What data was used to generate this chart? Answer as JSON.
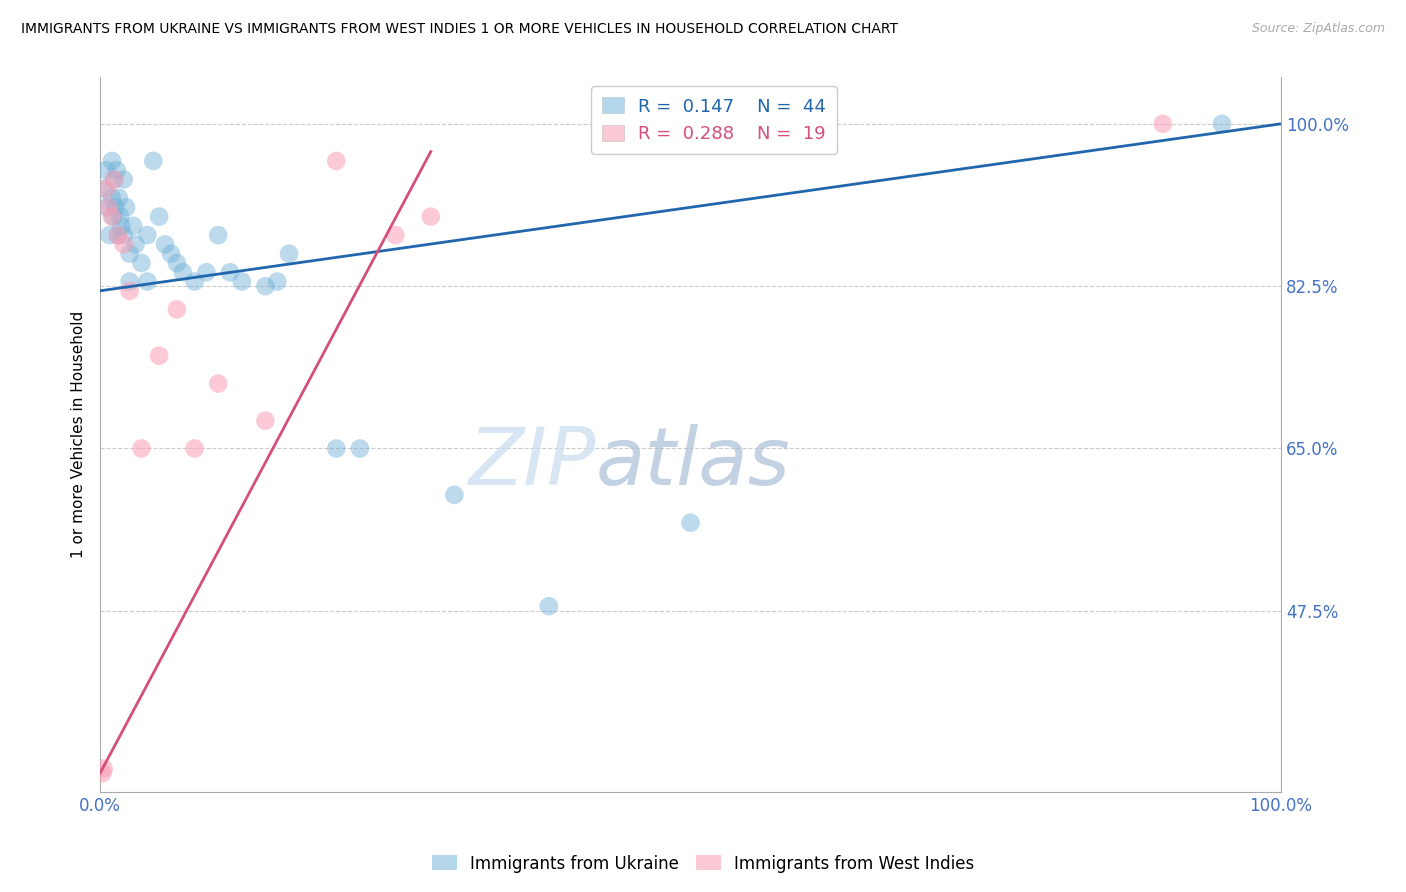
{
  "title": "IMMIGRANTS FROM UKRAINE VS IMMIGRANTS FROM WEST INDIES 1 OR MORE VEHICLES IN HOUSEHOLD CORRELATION CHART",
  "source": "Source: ZipAtlas.com",
  "ylabel": "1 or more Vehicles in Household",
  "ukraine_R": 0.147,
  "ukraine_N": 44,
  "westindies_R": 0.288,
  "westindies_N": 19,
  "ukraine_color": "#6baed6",
  "westindies_color": "#fa9fb5",
  "ukraine_line_color": "#2166ac",
  "westindies_line_color": "#d44f7a",
  "background_color": "#ffffff",
  "watermark_zip": "ZIP",
  "watermark_atlas": "atlas",
  "xmin": 0,
  "xmax": 100,
  "ymin": 28,
  "ymax": 105,
  "yticks": [
    47.5,
    65.0,
    82.5,
    100.0
  ],
  "ukraine_x": [
    0.4,
    0.5,
    0.6,
    0.8,
    1.0,
    1.0,
    1.1,
    1.2,
    1.3,
    1.4,
    1.5,
    1.6,
    1.7,
    1.8,
    2.0,
    2.0,
    2.2,
    2.5,
    2.5,
    2.8,
    3.0,
    3.5,
    4.0,
    4.0,
    4.5,
    5.0,
    5.5,
    6.0,
    6.5,
    7.0,
    8.0,
    9.0,
    10.0,
    11.0,
    12.0,
    14.0,
    15.0,
    16.0,
    20.0,
    22.0,
    30.0,
    38.0,
    50.0,
    95.0
  ],
  "ukraine_y": [
    93.0,
    95.0,
    91.0,
    88.0,
    92.0,
    96.0,
    90.0,
    94.0,
    91.0,
    95.0,
    88.0,
    92.0,
    90.0,
    89.0,
    94.0,
    88.0,
    91.0,
    86.0,
    83.0,
    89.0,
    87.0,
    85.0,
    88.0,
    83.0,
    96.0,
    90.0,
    87.0,
    86.0,
    85.0,
    84.0,
    83.0,
    84.0,
    88.0,
    84.0,
    83.0,
    82.5,
    83.0,
    86.0,
    65.0,
    65.0,
    60.0,
    48.0,
    57.0,
    100.0
  ],
  "westindies_x": [
    0.2,
    0.3,
    0.5,
    0.7,
    1.0,
    1.2,
    1.5,
    2.0,
    2.5,
    3.5,
    5.0,
    6.5,
    8.0,
    10.0,
    14.0,
    20.0,
    25.0,
    28.0,
    90.0
  ],
  "westindies_y": [
    30.0,
    30.5,
    93.0,
    91.0,
    90.0,
    94.0,
    88.0,
    87.0,
    82.0,
    65.0,
    75.0,
    80.0,
    65.0,
    72.0,
    68.0,
    96.0,
    88.0,
    90.0,
    100.0
  ],
  "blue_line_x0": 0,
  "blue_line_y0": 82.0,
  "blue_line_x1": 100,
  "blue_line_y1": 100.0,
  "pink_line_x0": 0,
  "pink_line_y0": 30.0,
  "pink_line_x1": 28,
  "pink_line_y1": 97.0
}
